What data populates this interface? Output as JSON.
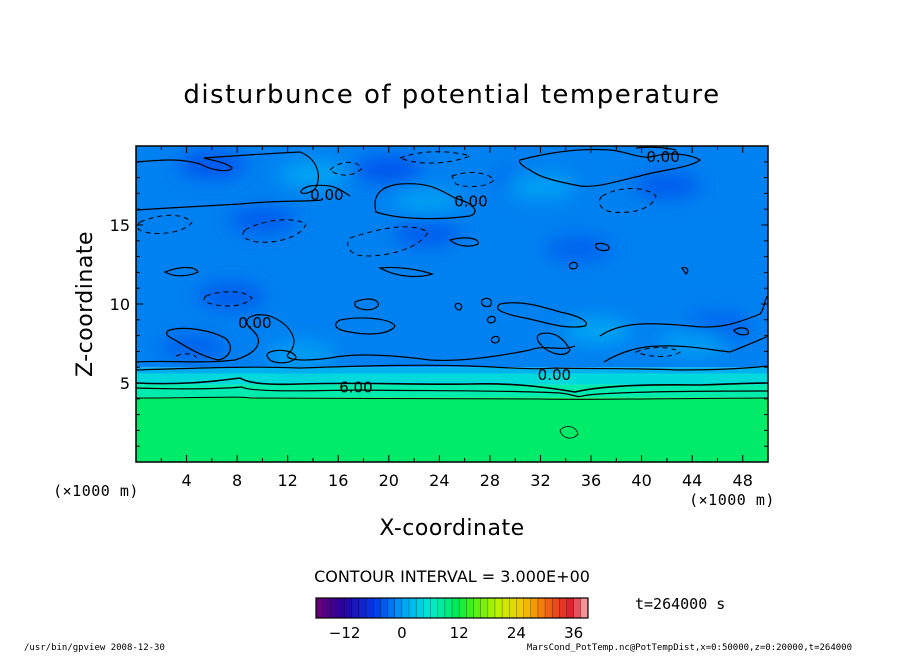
{
  "chart_data": {
    "type": "heatmap",
    "title": "disturbunce of potential temperature",
    "xlabel": "X-coordinate",
    "ylabel": "Z-coordinate",
    "x_unit": "(×1000 m)",
    "y_unit": "(×1000 m)",
    "xlim": [
      0,
      50
    ],
    "ylim": [
      0,
      20
    ],
    "x_ticks": [
      4,
      8,
      12,
      16,
      20,
      24,
      28,
      32,
      36,
      40,
      44,
      48
    ],
    "y_ticks": [
      5,
      10,
      15
    ],
    "layers": [
      {
        "z_from": 0,
        "z_to": 4.1,
        "value": 10.5
      },
      {
        "z_from": 4.1,
        "z_to": 4.9,
        "value": 7.5
      },
      {
        "z_from": 4.9,
        "z_to": 5.6,
        "value": 4.5
      },
      {
        "z_from": 5.6,
        "z_to": 6.0,
        "value": 1.5
      },
      {
        "z_from": 6.0,
        "z_to": 20,
        "value": -1.5
      }
    ],
    "patches": [
      {
        "x": 6,
        "z": 18.8,
        "value": -4.5
      },
      {
        "x": 20,
        "z": 18.5,
        "value": -4.5
      },
      {
        "x": 42,
        "z": 17.5,
        "value": -4
      },
      {
        "x": 10,
        "z": 15.3,
        "value": -4
      },
      {
        "x": 23,
        "z": 14.5,
        "value": -4
      },
      {
        "x": 31,
        "z": 17.8,
        "value": -3.5
      },
      {
        "x": 7.5,
        "z": 10.5,
        "value": -4
      },
      {
        "x": 46,
        "z": 8.6,
        "value": -3.5
      },
      {
        "x": 4.5,
        "z": 7.3,
        "value": -3.5
      },
      {
        "x": 35,
        "z": 13.5,
        "value": -3.5
      },
      {
        "x": 14,
        "z": 18.2,
        "value": 1
      },
      {
        "x": 32,
        "z": 17.5,
        "value": 1
      },
      {
        "x": 23,
        "z": 16.5,
        "value": 0.5
      },
      {
        "x": 36.5,
        "z": 8.3,
        "value": 1
      },
      {
        "x": 13,
        "z": 6.8,
        "value": 0.5
      },
      {
        "x": 44,
        "z": 7.5,
        "value": 0.5
      }
    ],
    "contour_labels": [
      {
        "text": "0.00",
        "x": 41.7,
        "z": 19.3
      },
      {
        "text": "0.00",
        "x": 15.1,
        "z": 16.9
      },
      {
        "text": "0.00",
        "x": 26.5,
        "z": 16.5
      },
      {
        "text": "0.00",
        "x": 9.4,
        "z": 8.8
      },
      {
        "text": "0.00",
        "x": 33.1,
        "z": 5.5
      },
      {
        "text": "6.00",
        "x": 17.4,
        "z": 4.7
      }
    ],
    "contour_interval": "CONTOUR INTERVAL = 3.000E+00",
    "time": "t=264000 s",
    "colorbar": {
      "min": -18,
      "max": 39,
      "step": 1.5,
      "ticks": [
        -12,
        0,
        12,
        24,
        36
      ],
      "tick_labels": [
        "−12",
        "0",
        "12",
        "24",
        "36"
      ]
    }
  },
  "footer": {
    "left": "/usr/bin/gpview   2008-12-30",
    "right": "MarsCond_PotTemp.nc@PotTempDist,x=0:50000,z=0:20000,t=264000"
  },
  "colors": {
    "frame": "#000000",
    "background": "#ffffff"
  }
}
